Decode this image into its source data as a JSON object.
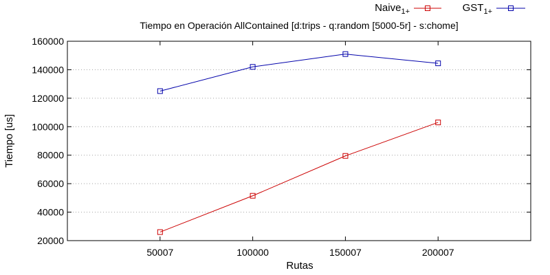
{
  "chart_data": {
    "type": "line",
    "title": "Tiempo en Operación AllContained [d:trips - q:random [5000-5r] - s:chome]",
    "xlabel": "Rutas",
    "ylabel": "Tiempo [us]",
    "x": [
      50007,
      100000,
      150007,
      200007
    ],
    "x_tick_labels": [
      "50007",
      "100000",
      "150007",
      "200007"
    ],
    "xlim": [
      0,
      250007
    ],
    "ylim": [
      20000,
      160000
    ],
    "y_ticks": [
      20000,
      40000,
      60000,
      80000,
      100000,
      120000,
      140000,
      160000
    ],
    "grid": true,
    "legend_position": "top-right",
    "series": [
      {
        "name": "Naive",
        "name_sub": "1+",
        "color": "#cc0000",
        "marker": "square",
        "values": [
          26000,
          51500,
          79500,
          103000
        ]
      },
      {
        "name": "GST",
        "name_sub": "1+",
        "color": "#0000aa",
        "marker": "square",
        "values": [
          125000,
          142000,
          151000,
          144500
        ]
      }
    ]
  }
}
